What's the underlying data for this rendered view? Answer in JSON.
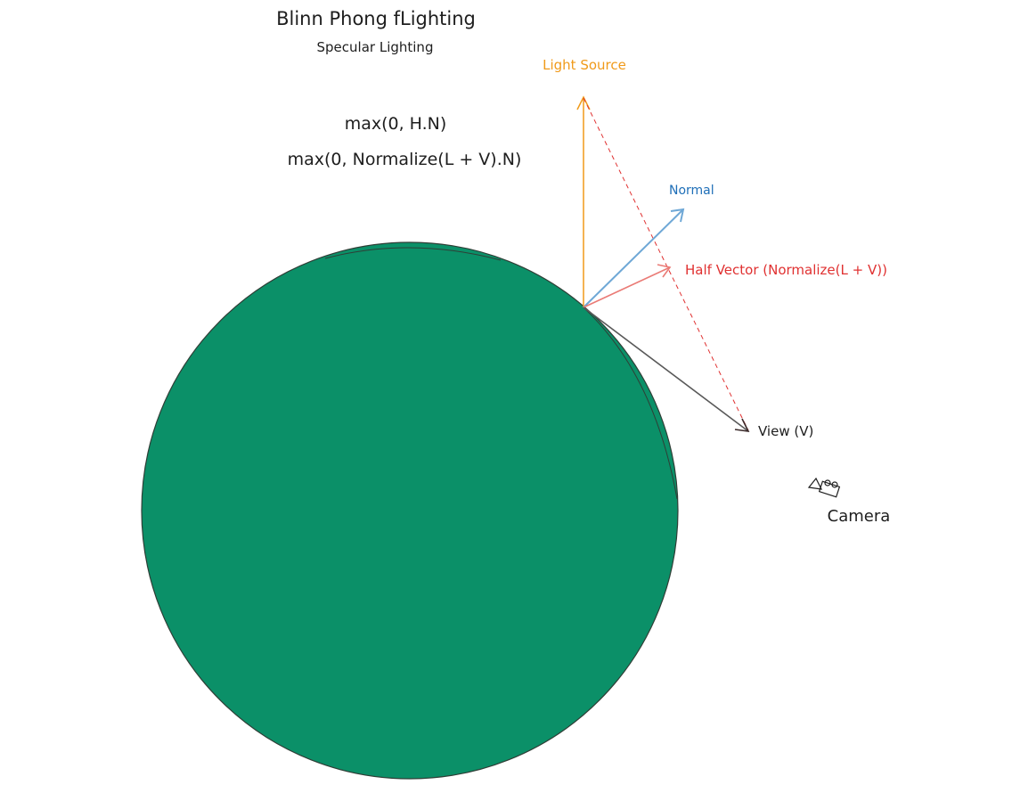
{
  "title": "Blinn Phong fLighting",
  "subtitle": "Specular Lighting",
  "formulas": {
    "line1": "max(0, H.N)",
    "line2": "max(0, Normalize(L + V).N)"
  },
  "labels": {
    "light_source": "Light Source",
    "normal": "Normal",
    "half_vector": "Half Vector (Normalize(L + V))",
    "view": "View (V)",
    "camera": "Camera"
  },
  "icons": {
    "camera": "camera-icon"
  },
  "colors": {
    "sphere_fill": "#0b9068",
    "sphere_stroke": "#2f3e36",
    "light": "#f09a1a",
    "normal": "#1f6fb8",
    "normal_arrow": "#6fa8d6",
    "half_vector": "#e03131",
    "half_arrow": "#ea7b76",
    "view": "#595959",
    "text": "#1e1e1e"
  }
}
